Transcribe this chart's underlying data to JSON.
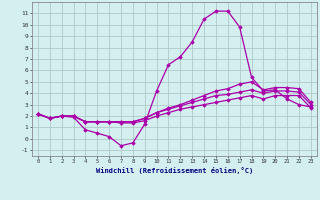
{
  "x": [
    0,
    1,
    2,
    3,
    4,
    5,
    6,
    7,
    8,
    9,
    10,
    11,
    12,
    13,
    14,
    15,
    16,
    17,
    18,
    19,
    20,
    21,
    22,
    23
  ],
  "line1": [
    2.2,
    1.8,
    2.0,
    1.9,
    0.8,
    0.5,
    0.2,
    -0.6,
    -0.35,
    1.3,
    4.2,
    6.5,
    7.2,
    8.5,
    10.5,
    11.2,
    11.2,
    9.8,
    5.4,
    4.2,
    4.3,
    3.5,
    3.0,
    2.8
  ],
  "line2": [
    2.2,
    1.8,
    2.0,
    2.0,
    1.5,
    1.5,
    1.5,
    1.5,
    1.5,
    1.8,
    2.3,
    2.7,
    3.0,
    3.4,
    3.8,
    4.2,
    4.4,
    4.8,
    5.0,
    4.3,
    4.5,
    4.5,
    4.4,
    3.2
  ],
  "line3": [
    2.2,
    1.8,
    2.0,
    2.0,
    1.5,
    1.5,
    1.5,
    1.5,
    1.5,
    1.8,
    2.3,
    2.6,
    2.9,
    3.2,
    3.5,
    3.8,
    3.9,
    4.1,
    4.3,
    4.0,
    4.2,
    4.2,
    4.1,
    3.0
  ],
  "line4": [
    2.2,
    1.8,
    2.0,
    2.0,
    1.5,
    1.5,
    1.5,
    1.4,
    1.4,
    1.6,
    2.0,
    2.3,
    2.6,
    2.8,
    3.0,
    3.2,
    3.4,
    3.6,
    3.8,
    3.5,
    3.8,
    3.8,
    3.8,
    2.7
  ],
  "line_color": "#aa00aa",
  "bg_color": "#d4efef",
  "grid_color": "#b0c8c8",
  "xlabel": "Windchill (Refroidissement éolien,°C)",
  "ylim": [
    -1.5,
    12
  ],
  "xlim": [
    -0.5,
    23.5
  ],
  "yticks": [
    -1,
    0,
    1,
    2,
    3,
    4,
    5,
    6,
    7,
    8,
    9,
    10,
    11
  ],
  "xticks": [
    0,
    1,
    2,
    3,
    4,
    5,
    6,
    7,
    8,
    9,
    10,
    11,
    12,
    13,
    14,
    15,
    16,
    17,
    18,
    19,
    20,
    21,
    22,
    23
  ]
}
